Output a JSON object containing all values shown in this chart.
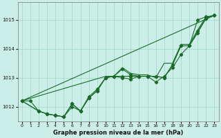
{
  "background_color": "#cceee8",
  "grid_color": "#aaddcc",
  "line_color": "#1a6b2a",
  "title": "Graphe pression niveau de la mer (hPa)",
  "xlim": [
    -0.5,
    23.5
  ],
  "ylim": [
    1011.5,
    1015.6
  ],
  "yticks": [
    1012,
    1013,
    1014,
    1015
  ],
  "xticks": [
    0,
    1,
    2,
    3,
    4,
    5,
    6,
    7,
    8,
    9,
    10,
    11,
    12,
    13,
    14,
    15,
    16,
    17,
    18,
    19,
    20,
    21,
    22,
    23
  ],
  "series": {
    "envelope": {
      "x": [
        0,
        23
      ],
      "y": [
        1012.2,
        1015.15
      ]
    },
    "line1": {
      "x": [
        0,
        1,
        2,
        3,
        4,
        5,
        6,
        7,
        8,
        9,
        10,
        11,
        12,
        13,
        14,
        15,
        16,
        17,
        18,
        19,
        20,
        21,
        22,
        23
      ],
      "y": [
        1012.2,
        1012.2,
        1011.85,
        1011.75,
        1011.7,
        1011.65,
        1012.1,
        1011.85,
        1012.35,
        1012.6,
        1013.0,
        1013.05,
        1013.0,
        1012.95,
        1013.05,
        1013.05,
        1013.05,
        1013.0,
        1013.45,
        1014.1,
        1014.1,
        1015.0,
        1015.1,
        1015.15
      ]
    },
    "line2": {
      "x": [
        0,
        2,
        3,
        4,
        5,
        6,
        7,
        8,
        9,
        10,
        11,
        12,
        13,
        14,
        15,
        16,
        17,
        18,
        19,
        20,
        21,
        22,
        23
      ],
      "y": [
        1012.2,
        1011.85,
        1011.75,
        1011.7,
        1011.65,
        1012.0,
        1011.85,
        1012.3,
        1012.55,
        1013.0,
        1013.05,
        1013.3,
        1013.1,
        1013.05,
        1013.05,
        1012.85,
        1013.05,
        1013.35,
        1013.8,
        1014.1,
        1014.55,
        1015.05,
        1015.15
      ]
    },
    "line3": {
      "x": [
        0,
        2,
        3,
        4,
        5,
        6,
        7,
        8,
        9,
        10,
        11,
        12,
        13,
        14,
        15,
        16,
        17,
        18,
        19,
        20,
        21,
        22,
        23
      ],
      "y": [
        1012.2,
        1011.85,
        1011.75,
        1011.7,
        1011.65,
        1012.1,
        1011.85,
        1012.3,
        1012.55,
        1013.0,
        1013.05,
        1013.05,
        1013.05,
        1013.05,
        1013.05,
        1013.05,
        1013.0,
        1013.45,
        1014.1,
        1014.1,
        1014.6,
        1015.05,
        1015.15
      ]
    },
    "upper_env": {
      "x": [
        0,
        10,
        11,
        12,
        13,
        14,
        15,
        16,
        17,
        18,
        19,
        20,
        21,
        22,
        23
      ],
      "y": [
        1012.2,
        1013.05,
        1013.05,
        1013.35,
        1013.15,
        1013.1,
        1013.1,
        1013.0,
        1013.5,
        1013.5,
        1014.15,
        1014.15,
        1014.65,
        1015.1,
        1015.15
      ]
    }
  }
}
